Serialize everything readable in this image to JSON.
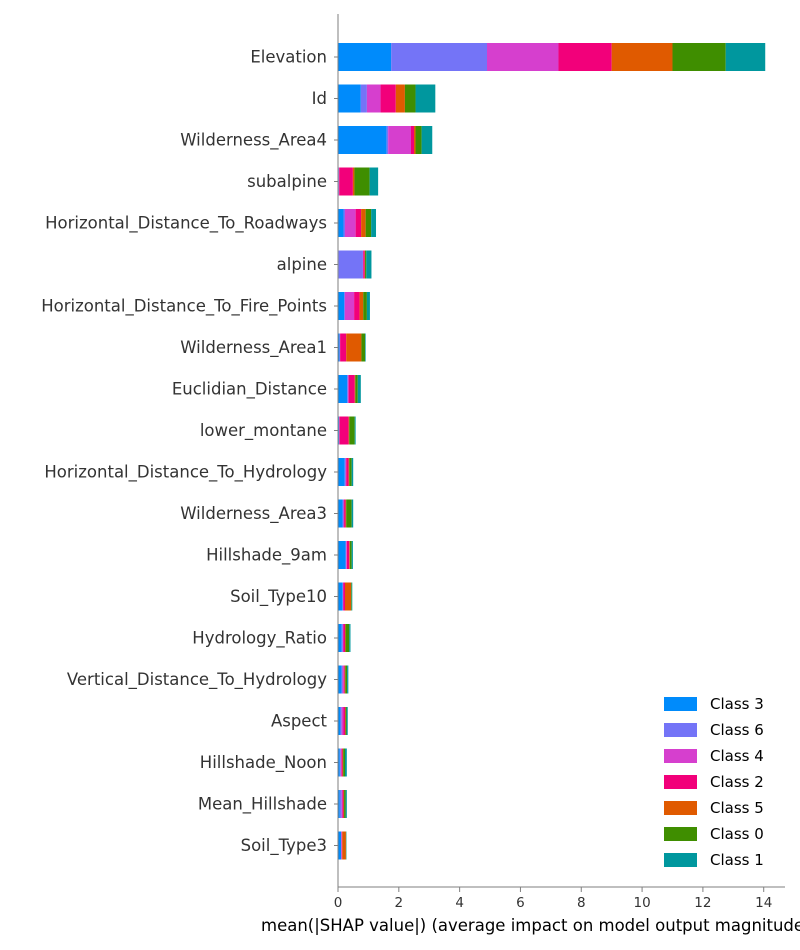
{
  "chart_data": {
    "type": "bar",
    "orientation": "horizontal",
    "stacked": true,
    "title": "",
    "xlabel": "mean(|SHAP value|) (average impact on model output magnitude)",
    "ylabel": "",
    "xlim": [
      0,
      14.7
    ],
    "xticks": [
      0,
      2,
      4,
      6,
      8,
      10,
      12,
      14
    ],
    "grid": false,
    "legend_position": "bottom-right",
    "categories": [
      "Elevation",
      "Id",
      "Wilderness_Area4",
      "subalpine",
      "Horizontal_Distance_To_Roadways",
      "alpine",
      "Horizontal_Distance_To_Fire_Points",
      "Wilderness_Area1",
      "Euclidian_Distance",
      "lower_montane",
      "Horizontal_Distance_To_Hydrology",
      "Wilderness_Area3",
      "Hillshade_9am",
      "Soil_Type10",
      "Hydrology_Ratio",
      "Vertical_Distance_To_Hydrology",
      "Aspect",
      "Hillshade_Noon",
      "Mean_Hillshade",
      "Soil_Type3"
    ],
    "series": [
      {
        "name": "Class 3",
        "color": "#008bfb",
        "values": [
          1.75,
          0.75,
          1.6,
          0.02,
          0.18,
          0.02,
          0.2,
          0.05,
          0.3,
          0.03,
          0.22,
          0.15,
          0.25,
          0.15,
          0.12,
          0.12,
          0.08,
          0.06,
          0.06,
          0.1
        ]
      },
      {
        "name": "Class 6",
        "color": "#7474f7",
        "values": [
          3.15,
          0.2,
          0.05,
          0.01,
          0.05,
          0.8,
          0.03,
          0.01,
          0.03,
          0.01,
          0.03,
          0.03,
          0.02,
          0.01,
          0.04,
          0.03,
          0.04,
          0.03,
          0.06,
          0.01
        ]
      },
      {
        "name": "Class 4",
        "color": "#d63fce",
        "values": [
          2.35,
          0.45,
          0.75,
          0.01,
          0.35,
          0.01,
          0.3,
          0.01,
          0.02,
          0.01,
          0.02,
          0.02,
          0.02,
          0.02,
          0.02,
          0.04,
          0.06,
          0.03,
          0.03,
          0.01
        ]
      },
      {
        "name": "Class 2",
        "color": "#f2007a",
        "values": [
          1.75,
          0.5,
          0.1,
          0.45,
          0.18,
          0.05,
          0.18,
          0.2,
          0.2,
          0.3,
          0.08,
          0.05,
          0.08,
          0.05,
          0.05,
          0.03,
          0.05,
          0.03,
          0.03,
          0.02
        ]
      },
      {
        "name": "Class 5",
        "color": "#e05a00",
        "values": [
          2.0,
          0.3,
          0.05,
          0.05,
          0.15,
          0.01,
          0.12,
          0.5,
          0.02,
          0.02,
          0.02,
          0.02,
          0.02,
          0.2,
          0.02,
          0.02,
          0.02,
          0.02,
          0.02,
          0.12
        ]
      },
      {
        "name": "Class 0",
        "color": "#3f8e00",
        "values": [
          1.75,
          0.35,
          0.2,
          0.5,
          0.18,
          0.04,
          0.12,
          0.12,
          0.08,
          0.18,
          0.08,
          0.18,
          0.06,
          0.02,
          0.12,
          0.06,
          0.03,
          0.06,
          0.05,
          0.01
        ]
      },
      {
        "name": "Class 1",
        "color": "#00979e",
        "values": [
          1.3,
          0.65,
          0.35,
          0.28,
          0.16,
          0.17,
          0.1,
          0.02,
          0.1,
          0.03,
          0.05,
          0.05,
          0.04,
          0.02,
          0.04,
          0.04,
          0.04,
          0.06,
          0.04,
          0.01
        ]
      }
    ]
  }
}
